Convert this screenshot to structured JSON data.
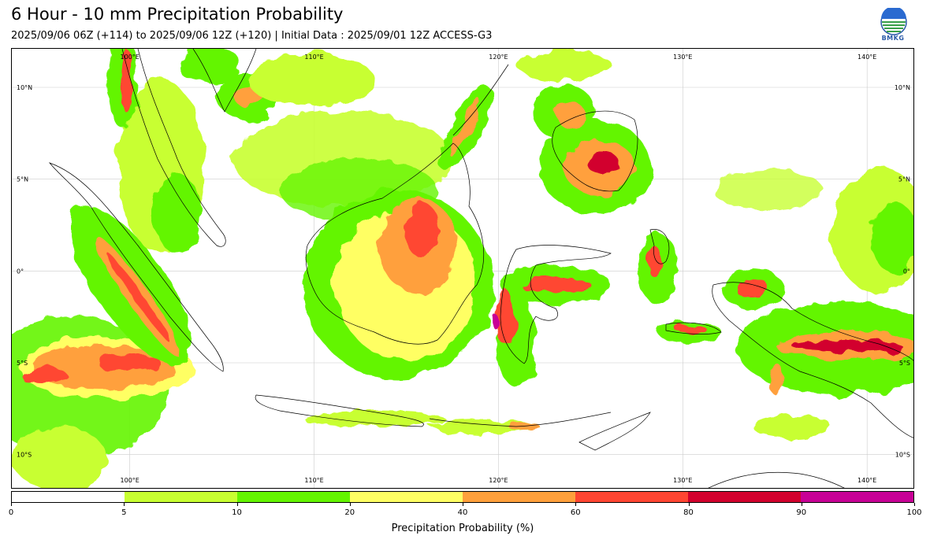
{
  "header": {
    "title": "6 Hour - 10 mm Precipitation Probability",
    "subtitle": "2025/09/06 06Z (+114) to 2025/09/06 12Z (+120) | Initial Data : 2025/09/01 12Z ACCESS-G3",
    "logo_text": "BMKG"
  },
  "map": {
    "lon_labels_top": [
      "100°E",
      "110°E",
      "120°E",
      "130°E",
      "140°E"
    ],
    "lon_labels_bottom": [
      "100°E",
      "110°E",
      "120°E",
      "130°E",
      "140°E"
    ],
    "lat_labels_left": [
      "10°N",
      "5°N",
      "0°",
      "5°S",
      "10°S"
    ],
    "lat_labels_right": [
      "10°N",
      "5°N",
      "0°",
      "5°S",
      "10°S"
    ],
    "lon_values": [
      100,
      110,
      120,
      130,
      140
    ],
    "lat_values": [
      10,
      5,
      0,
      -5,
      -10
    ],
    "extent": {
      "lon_min": 93.6,
      "lon_max": 142.6,
      "lat_min": -11.9,
      "lat_max": 12.1
    },
    "colors": {
      "coast": "#000000",
      "grid": "#cccccc"
    }
  },
  "colorbar": {
    "label": "Precipitation Probability (%)",
    "ticks": [
      "0",
      "5",
      "10",
      "20",
      "40",
      "60",
      "80",
      "90",
      "100"
    ],
    "colors": [
      "#ffffff",
      "#c8ff32",
      "#64f500",
      "#ffff64",
      "#ffa03c",
      "#ff4632",
      "#d2002d",
      "#c80096"
    ]
  }
}
